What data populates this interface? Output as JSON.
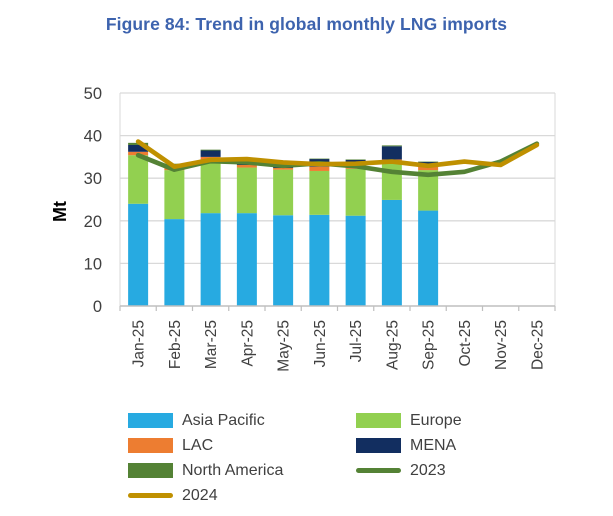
{
  "title": "Figure 84: Trend in global monthly LNG imports",
  "colors": {
    "title": "#3D63AE",
    "gridline": "#D9D9D9",
    "axis": "#BFBFBF",
    "tick_text": "#404040",
    "asia_pacific": "#27AAE1",
    "europe": "#92D050",
    "lac": "#ED7D31",
    "mena": "#122E60",
    "north_america": "#548235",
    "line_2023": "#548235",
    "line_2024": "#BF9000"
  },
  "chart_data": {
    "type": "bar",
    "subtype": "stacked-bars-with-lines",
    "title": "Figure 84: Trend in global monthly LNG imports",
    "xlabel": "",
    "ylabel": "Mt",
    "ylim": [
      0,
      50
    ],
    "ytick_step": 10,
    "yticks": [
      "0",
      "10",
      "20",
      "30",
      "40",
      "50"
    ],
    "grid": "horizontal",
    "legend_position": "bottom",
    "categories": [
      "Jan-25",
      "Feb-25",
      "Mar-25",
      "Apr-25",
      "May-25",
      "Jun-25",
      "Jul-25",
      "Aug-25",
      "Sep-25",
      "Oct-25",
      "Nov-25",
      "Dec-25"
    ],
    "bar_series": [
      {
        "name": "Asia Pacific",
        "color": "#27AAE1",
        "values": [
          24.0,
          20.4,
          21.8,
          21.8,
          21.3,
          21.4,
          21.2,
          24.9,
          22.4,
          null,
          null,
          null
        ]
      },
      {
        "name": "Europe",
        "color": "#92D050",
        "values": [
          11.4,
          11.5,
          12.5,
          10.7,
          10.7,
          10.3,
          11.0,
          8.7,
          9.5,
          null,
          null,
          null
        ]
      },
      {
        "name": "LAC",
        "color": "#ED7D31",
        "values": [
          0.8,
          0.8,
          0.7,
          0.6,
          0.4,
          1.0,
          0.9,
          0.8,
          0.9,
          null,
          null,
          null
        ]
      },
      {
        "name": "MENA",
        "color": "#122E60",
        "values": [
          1.6,
          0.5,
          1.5,
          0.8,
          0.4,
          1.8,
          1.2,
          3.1,
          1.0,
          null,
          null,
          null
        ]
      },
      {
        "name": "North America",
        "color": "#548235",
        "values": [
          0.5,
          0.2,
          0.2,
          0.3,
          0.2,
          0.1,
          0.1,
          0.2,
          0.1,
          null,
          null,
          null
        ]
      }
    ],
    "line_series": [
      {
        "name": "2023",
        "color": "#548235",
        "values": [
          35.4,
          32.0,
          34.0,
          33.7,
          32.9,
          33.5,
          32.8,
          31.5,
          30.8,
          31.5,
          33.9,
          38.1
        ]
      },
      {
        "name": "2024",
        "color": "#BF9000",
        "values": [
          38.6,
          32.7,
          34.3,
          34.5,
          33.7,
          33.3,
          33.4,
          33.9,
          32.9,
          33.9,
          33.1,
          37.8
        ]
      }
    ]
  },
  "legend": {
    "items": [
      {
        "label": "Asia Pacific",
        "color": "#27AAE1",
        "type": "bar"
      },
      {
        "label": "Europe",
        "color": "#92D050",
        "type": "bar"
      },
      {
        "label": "LAC",
        "color": "#ED7D31",
        "type": "bar"
      },
      {
        "label": "MENA",
        "color": "#122E60",
        "type": "bar"
      },
      {
        "label": "North America",
        "color": "#548235",
        "type": "bar"
      },
      {
        "label": "2023",
        "color": "#548235",
        "type": "line"
      },
      {
        "label": "2024",
        "color": "#BF9000",
        "type": "line"
      }
    ]
  }
}
